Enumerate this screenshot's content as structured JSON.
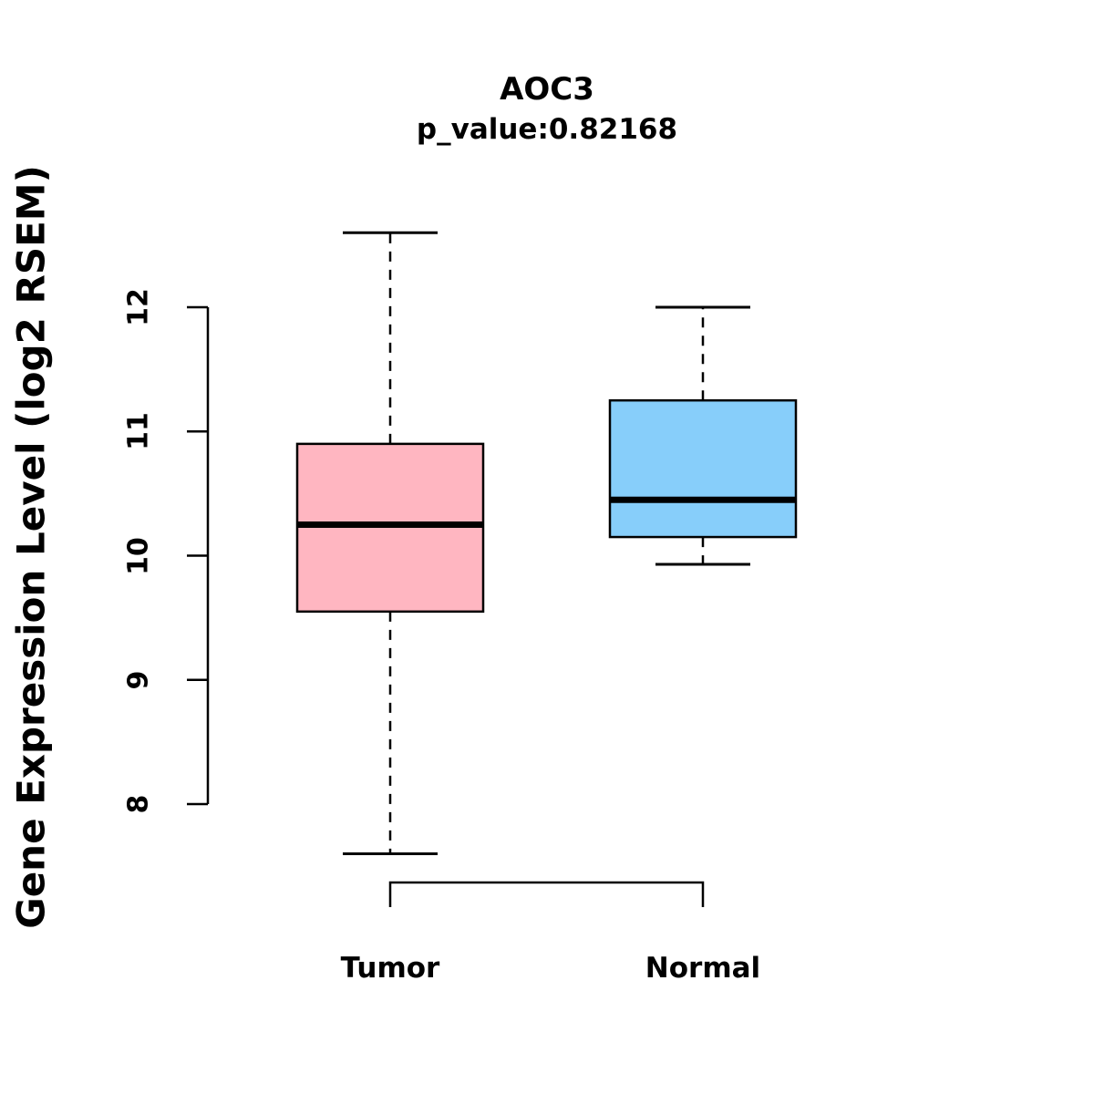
{
  "chart_data": {
    "type": "boxplot",
    "title": "AOC3",
    "subtitle": "p_value:0.82168",
    "ylabel": "Gene Expression Level (log2 RSEM)",
    "yticks": [
      8,
      9,
      10,
      11,
      12
    ],
    "ylim": [
      7.3,
      12.8
    ],
    "grid": false,
    "legend": "none",
    "categories": [
      "Tumor",
      "Normal"
    ],
    "series": [
      {
        "name": "Tumor",
        "color": "#FFB6C1",
        "whisker_low": 7.6,
        "q1": 9.55,
        "median": 10.25,
        "q3": 10.9,
        "whisker_high": 12.6
      },
      {
        "name": "Normal",
        "color": "#87CEFA",
        "whisker_low": 9.93,
        "q1": 10.15,
        "median": 10.45,
        "q3": 11.25,
        "whisker_high": 12.0
      }
    ],
    "colors": {
      "box_stroke": "#000000",
      "median": "#000000",
      "axis": "#000000"
    }
  }
}
